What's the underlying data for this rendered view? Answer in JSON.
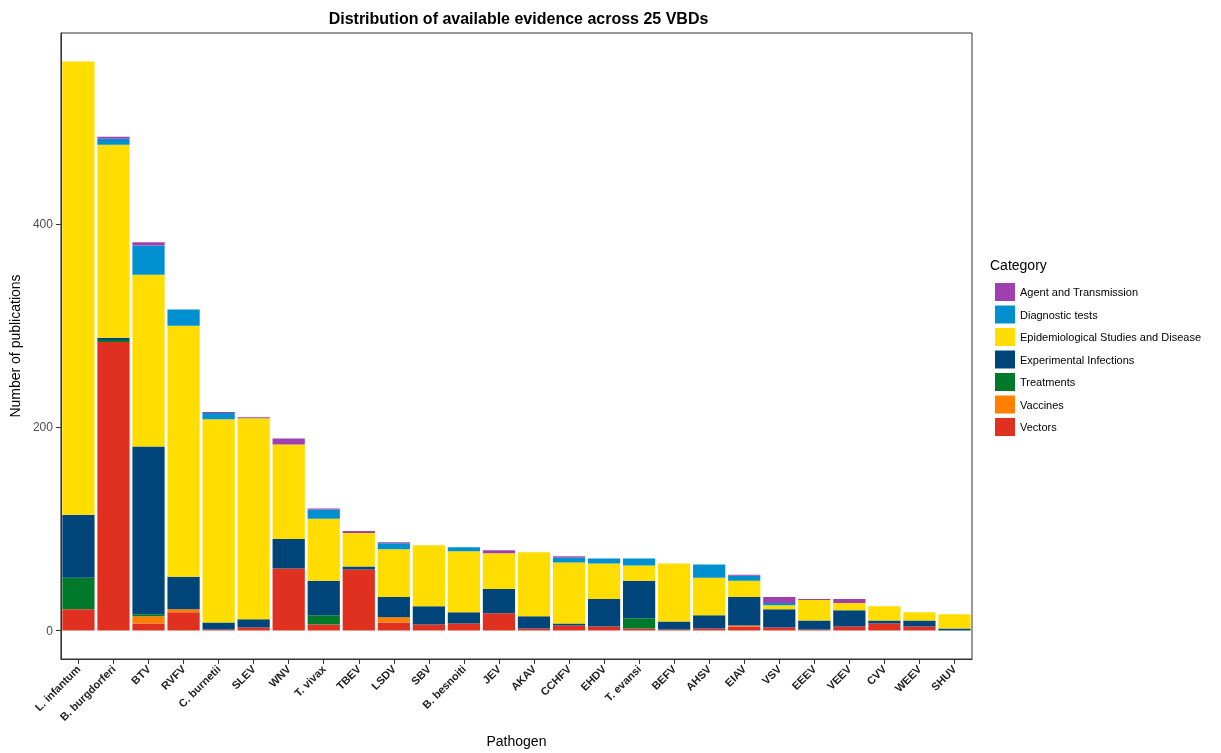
{
  "chart_data": {
    "type": "bar",
    "title": "Distribution of available evidence across 25 VBDs",
    "xlabel": "Pathogen",
    "ylabel": "Number of publications",
    "legend_title": "Category",
    "categories": [
      "L. infantum",
      "B. burgdorferi",
      "BTV",
      "RVFV",
      "C. burnetii",
      "SLEV",
      "WNV",
      "T. vivax",
      "TBEV",
      "LSDV",
      "SBV",
      "B. besnoiti",
      "JEV",
      "AKAV",
      "CCHFV",
      "EHDV",
      "T. evansi",
      "BEFV",
      "AHSV",
      "EIAV",
      "VSV",
      "EEEV",
      "VEEV",
      "CVV",
      "WEEV",
      "SHUV"
    ],
    "stacked": true,
    "ylim": [
      -28,
      588
    ],
    "yticks": [
      0,
      200,
      400
    ],
    "grid": false,
    "legend": "right",
    "series": [
      {
        "name": "Vectors",
        "color": "#e03020",
        "values": [
          21,
          284,
          7,
          18,
          1,
          3,
          61,
          6,
          60,
          8,
          6,
          7,
          17,
          2,
          5,
          4,
          2,
          1,
          2,
          4,
          3,
          1,
          4,
          7,
          4,
          0
        ]
      },
      {
        "name": "Vaccines",
        "color": "#ff8000",
        "values": [
          0,
          0,
          7,
          3,
          0,
          0,
          0,
          0,
          0,
          5,
          0,
          0,
          0,
          0,
          0,
          0,
          0,
          0,
          0,
          1,
          0,
          0,
          0,
          0,
          0,
          0
        ]
      },
      {
        "name": "Treatments",
        "color": "#007a2a",
        "values": [
          31,
          2,
          2,
          0,
          0,
          0,
          0,
          9,
          0,
          0,
          0,
          0,
          0,
          0,
          0,
          0,
          10,
          0,
          0,
          0,
          0,
          0,
          0,
          0,
          0,
          0
        ]
      },
      {
        "name": "Experimental Infections",
        "color": "#00457a",
        "values": [
          62,
          2,
          165,
          32,
          7,
          8,
          29,
          34,
          3,
          20,
          18,
          11,
          24,
          12,
          2,
          27,
          37,
          8,
          13,
          28,
          18,
          9,
          16,
          3,
          6,
          2
        ]
      },
      {
        "name": "Epidemiological Studies and Disease",
        "color": "#ffdd00",
        "values": [
          446,
          190,
          169,
          247,
          200,
          198,
          93,
          61,
          33,
          47,
          60,
          60,
          35,
          63,
          60,
          35,
          15,
          57,
          37,
          16,
          4,
          20,
          7,
          14,
          8,
          14
        ]
      },
      {
        "name": "Diagnostic tests",
        "color": "#0090d0",
        "values": [
          0,
          6,
          29,
          16,
          6,
          0,
          0,
          9,
          0,
          6,
          0,
          4,
          0,
          0,
          5,
          5,
          7,
          0,
          13,
          5,
          2,
          0,
          0,
          0,
          0,
          0
        ]
      },
      {
        "name": "Agent and Transmission",
        "color": "#a040b0",
        "values": [
          0,
          2,
          3,
          0,
          1,
          1,
          6,
          1,
          2,
          1,
          0,
          0,
          3,
          0,
          1,
          0,
          0,
          0,
          0,
          1,
          6,
          1,
          4,
          0,
          0,
          0
        ]
      }
    ]
  }
}
